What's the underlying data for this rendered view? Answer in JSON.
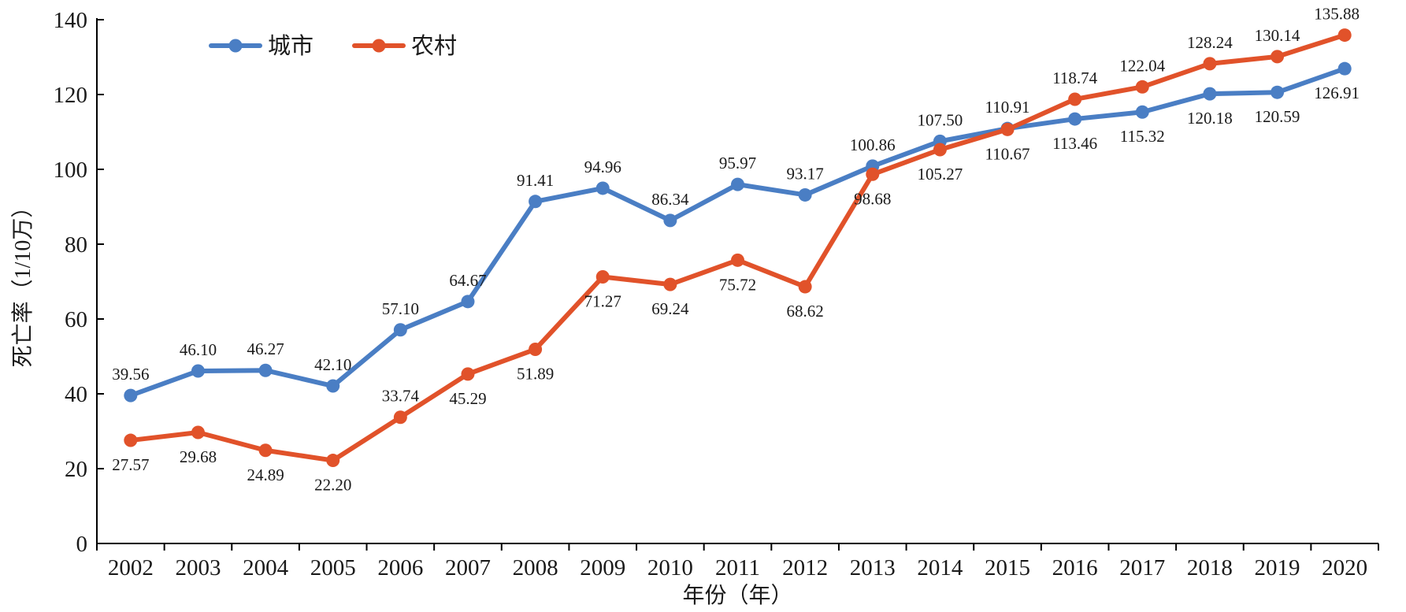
{
  "chart_data": {
    "type": "line",
    "title": "",
    "xlabel": "年份（年）",
    "ylabel": "死亡率（1/10万）",
    "ylim": [
      0,
      140
    ],
    "yticks": [
      0,
      20,
      40,
      60,
      80,
      100,
      120,
      140
    ],
    "grid": false,
    "legend_position": "top-left",
    "categories": [
      "2002",
      "2003",
      "2004",
      "2005",
      "2006",
      "2007",
      "2008",
      "2009",
      "2010",
      "2011",
      "2012",
      "2013",
      "2014",
      "2015",
      "2016",
      "2017",
      "2018",
      "2019",
      "2020"
    ],
    "series": [
      {
        "name": "城市",
        "color": "#4a7ec4",
        "values": [
          39.56,
          46.1,
          46.27,
          42.1,
          57.1,
          64.67,
          91.41,
          94.96,
          86.34,
          95.97,
          93.17,
          100.86,
          107.5,
          110.91,
          113.46,
          115.32,
          120.18,
          120.59,
          126.91
        ],
        "labels": [
          "39.56",
          "46.10",
          "46.27",
          "42.10",
          "57.10",
          "64.67",
          "91.41",
          "94.96",
          "86.34",
          "95.97",
          "93.17",
          "100.86",
          "107.50",
          "110.91",
          "113.46",
          "115.32",
          "120.18",
          "120.59",
          "126.91"
        ]
      },
      {
        "name": "农村",
        "color": "#e1522a",
        "values": [
          27.57,
          29.68,
          24.89,
          22.2,
          33.74,
          45.29,
          51.89,
          71.27,
          69.24,
          75.72,
          68.62,
          98.68,
          105.27,
          110.67,
          118.74,
          122.04,
          128.24,
          130.14,
          135.88
        ],
        "labels": [
          "27.57",
          "29.68",
          "24.89",
          "22.20",
          "33.74",
          "45.29",
          "51.89",
          "71.27",
          "69.24",
          "75.72",
          "68.62",
          "98.68",
          "105.27",
          "110.67",
          "118.74",
          "122.04",
          "128.24",
          "130.14",
          "135.88"
        ]
      }
    ]
  }
}
